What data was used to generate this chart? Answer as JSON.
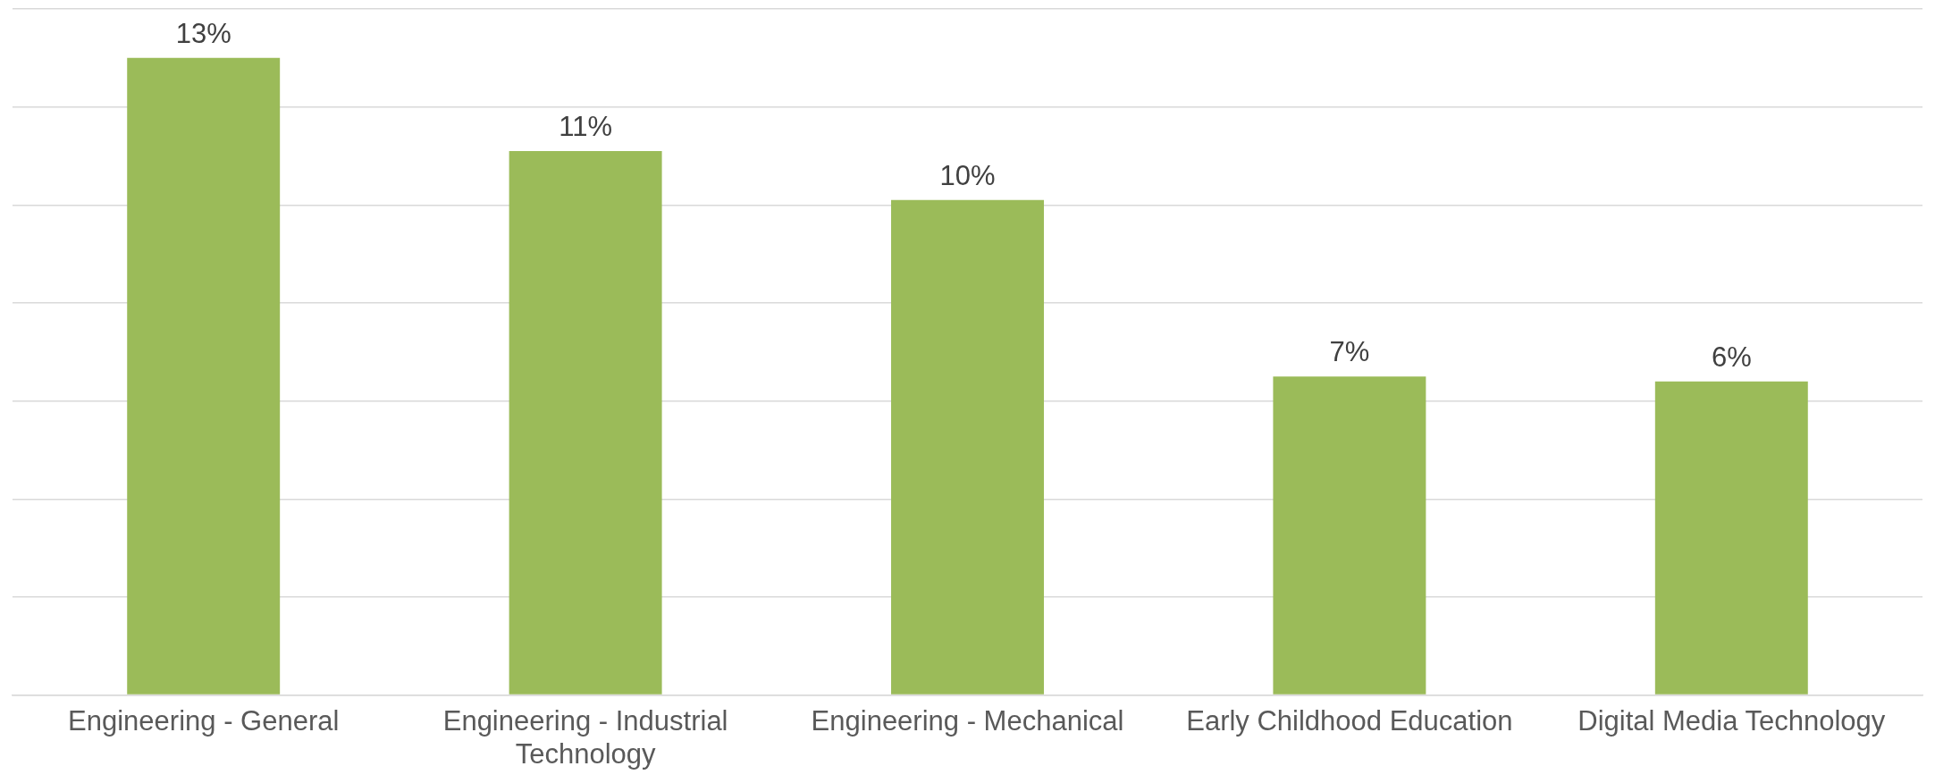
{
  "chart_data": {
    "type": "bar",
    "categories": [
      "Engineering - General",
      "Engineering - Industrial Technology",
      "Engineering - Mechanical",
      "Early Childhood Education",
      "Digital Media Technology"
    ],
    "values": [
      13,
      11.1,
      10.1,
      6.5,
      6.4
    ],
    "value_labels": [
      "13%",
      "11%",
      "10%",
      "7%",
      "6%"
    ],
    "color": "#9bbb59",
    "ylim": [
      0,
      14
    ],
    "yticks": [
      {
        "value": 0,
        "label": null
      },
      {
        "value": 2,
        "label": null
      },
      {
        "value": 4,
        "label": null
      },
      {
        "value": 6,
        "label": null
      },
      {
        "value": 8,
        "label": null
      },
      {
        "value": 10,
        "label": null
      },
      {
        "value": 12,
        "label": null
      },
      {
        "value": 14,
        "label": null
      }
    ],
    "grid": "y",
    "tick_labels": "x",
    "legend": false
  }
}
